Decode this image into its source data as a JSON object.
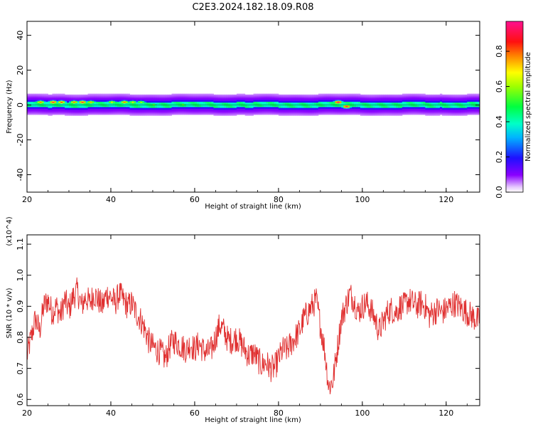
{
  "title": "C2E3.2024.182.18.09.R08",
  "chart_data": [
    {
      "id": "spectrogram",
      "type": "heatmap",
      "title": "",
      "xlabel": "Height of straight line (km)",
      "ylabel": "Frequency (Hz)",
      "xlim": [
        20,
        128
      ],
      "ylim": [
        -50,
        48
      ],
      "x_ticks": [
        20,
        40,
        60,
        80,
        100,
        120
      ],
      "y_ticks": [
        -40,
        -20,
        0,
        20,
        40
      ],
      "colorbar": {
        "label": "Normalized spectral amplitude",
        "range": [
          0.0,
          0.97
        ],
        "ticks": [
          0.0,
          0.2,
          0.4,
          0.6,
          0.8
        ],
        "colormap": "rainbow (purple-blue-cyan-green-yellow-red-magenta)"
      },
      "band": {
        "center_hz": 0,
        "half_width_hz_core": 1.5,
        "half_width_hz_outer": 6
      },
      "hotspots": [
        {
          "x": 23,
          "y": 1.5,
          "amp": 0.8
        },
        {
          "x": 26,
          "y": 1.5,
          "amp": 0.9
        },
        {
          "x": 28,
          "y": 1.5,
          "amp": 0.85
        },
        {
          "x": 31,
          "y": 1.5,
          "amp": 0.8
        },
        {
          "x": 33,
          "y": 1.5,
          "amp": 0.9
        },
        {
          "x": 35,
          "y": 1.5,
          "amp": 0.75
        },
        {
          "x": 40,
          "y": 1.5,
          "amp": 0.7
        },
        {
          "x": 43,
          "y": 1.5,
          "amp": 0.8
        },
        {
          "x": 45,
          "y": 1.5,
          "amp": 0.7
        },
        {
          "x": 47,
          "y": 1.5,
          "amp": 0.65
        },
        {
          "x": 50,
          "y": 0,
          "amp": 0.6
        },
        {
          "x": 57,
          "y": 0,
          "amp": 0.6
        },
        {
          "x": 94,
          "y": 1.5,
          "amp": 0.97
        },
        {
          "x": 96,
          "y": -1,
          "amp": 0.95
        }
      ]
    },
    {
      "id": "snr",
      "type": "line",
      "title": "",
      "xlabel": "Height of straight line (km)",
      "ylabel": "SNR (10 * v/v)",
      "y_multiplier": "(x10^4)",
      "xlim": [
        20,
        128
      ],
      "ylim": [
        0.58,
        1.13
      ],
      "x_ticks": [
        20,
        40,
        60,
        80,
        100,
        120
      ],
      "y_ticks": [
        0.6,
        0.7,
        0.8,
        0.9,
        1.0,
        1.1
      ],
      "series": [
        {
          "color": "#e03030",
          "x": [
            20,
            21,
            22,
            23,
            24,
            25,
            26,
            27,
            28,
            29,
            30,
            31,
            32,
            33,
            34,
            35,
            36,
            37,
            38,
            39,
            40,
            41,
            42,
            43,
            44,
            45,
            46,
            47,
            48,
            49,
            50,
            51,
            52,
            53,
            54,
            55,
            56,
            57,
            58,
            59,
            60,
            61,
            62,
            63,
            64,
            65,
            66,
            67,
            68,
            69,
            70,
            71,
            72,
            73,
            74,
            75,
            76,
            77,
            78,
            79,
            80,
            81,
            82,
            83,
            84,
            85,
            86,
            87,
            88,
            89,
            90,
            91,
            92,
            93,
            94,
            95,
            96,
            97,
            98,
            99,
            100,
            101,
            102,
            103,
            104,
            105,
            106,
            107,
            108,
            109,
            110,
            111,
            112,
            113,
            114,
            115,
            116,
            117,
            118,
            119,
            120,
            121,
            122,
            123,
            124,
            125,
            126,
            127,
            128
          ],
          "values": [
            0.74,
            0.8,
            0.86,
            0.82,
            0.9,
            0.92,
            0.88,
            0.9,
            0.87,
            0.92,
            0.89,
            0.93,
            0.95,
            0.9,
            0.93,
            0.91,
            0.94,
            0.92,
            0.9,
            0.94,
            0.93,
            0.91,
            0.94,
            0.92,
            0.9,
            0.91,
            0.88,
            0.86,
            0.83,
            0.79,
            0.77,
            0.76,
            0.75,
            0.73,
            0.77,
            0.79,
            0.78,
            0.77,
            0.76,
            0.78,
            0.76,
            0.78,
            0.76,
            0.75,
            0.76,
            0.8,
            0.84,
            0.82,
            0.79,
            0.79,
            0.8,
            0.78,
            0.76,
            0.74,
            0.75,
            0.73,
            0.71,
            0.72,
            0.7,
            0.7,
            0.73,
            0.76,
            0.76,
            0.78,
            0.8,
            0.82,
            0.86,
            0.88,
            0.9,
            0.92,
            0.84,
            0.76,
            0.64,
            0.66,
            0.76,
            0.86,
            0.9,
            0.94,
            0.92,
            0.88,
            0.9,
            0.91,
            0.89,
            0.86,
            0.82,
            0.85,
            0.88,
            0.89,
            0.88,
            0.9,
            0.9,
            0.92,
            0.91,
            0.9,
            0.91,
            0.9,
            0.87,
            0.88,
            0.89,
            0.88,
            0.89,
            0.9,
            0.91,
            0.9,
            0.89,
            0.88,
            0.87,
            0.86,
            0.85
          ]
        }
      ]
    }
  ]
}
